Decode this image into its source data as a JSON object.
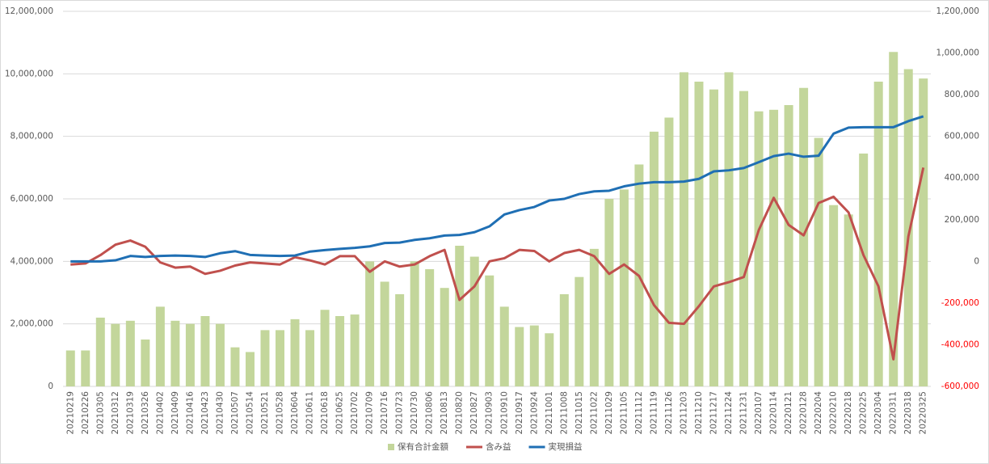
{
  "chart_data": {
    "type": "bar_line_combo",
    "categories": [
      "20210219",
      "20210226",
      "20210305",
      "20210312",
      "20210319",
      "20210326",
      "20210402",
      "20210409",
      "20210416",
      "20210423",
      "20210430",
      "20210507",
      "20210514",
      "20210521",
      "20210528",
      "20210604",
      "20210611",
      "20210618",
      "20210625",
      "20210702",
      "20210709",
      "20210716",
      "20210723",
      "20210730",
      "20210806",
      "20210813",
      "20210820",
      "20210827",
      "20210903",
      "20210910",
      "20210917",
      "20210924",
      "20211001",
      "20211008",
      "20211015",
      "20211022",
      "20211029",
      "20211105",
      "20211112",
      "20211119",
      "20211126",
      "20211203",
      "20211210",
      "20211217",
      "20211224",
      "20211231",
      "20220107",
      "20220114",
      "20220121",
      "20220128",
      "20220204",
      "20220210",
      "20220218",
      "20220225",
      "20220304",
      "20220311",
      "20220318",
      "20220325"
    ],
    "series": [
      {
        "name": "保有合計金額",
        "type": "bar",
        "color": "#c3d69b",
        "axis": "y",
        "values": [
          1150000,
          1150000,
          2200000,
          2000000,
          2100000,
          1500000,
          2550000,
          2100000,
          2000000,
          2250000,
          2000000,
          1250000,
          1100000,
          1800000,
          1800000,
          2150000,
          1800000,
          2450000,
          2250000,
          2300000,
          4000000,
          3350000,
          2950000,
          4000000,
          3750000,
          3150000,
          4500000,
          4150000,
          3550000,
          2550000,
          1900000,
          1950000,
          1700000,
          2950000,
          3500000,
          4400000,
          6000000,
          6300000,
          7100000,
          8150000,
          8600000,
          10050000,
          9750000,
          9500000,
          10050000,
          9450000,
          8800000,
          8850000,
          9000000,
          9550000,
          7950000,
          5800000,
          5500000,
          7450000,
          9750000,
          10700000,
          10150000,
          9850000
        ]
      },
      {
        "name": "含み益",
        "type": "line",
        "color": "#c0504d",
        "axis": "y2",
        "values": [
          -15000,
          -10000,
          30000,
          80000,
          100000,
          70000,
          -5000,
          -30000,
          -25000,
          -60000,
          -45000,
          -20000,
          -5000,
          -10000,
          -15000,
          20000,
          5000,
          -15000,
          25000,
          25000,
          -50000,
          0,
          -25000,
          -15000,
          25000,
          55000,
          -185000,
          -120000,
          0,
          15000,
          55000,
          50000,
          0,
          40000,
          55000,
          25000,
          -60000,
          -15000,
          -70000,
          -210000,
          -295000,
          -300000,
          -215000,
          -120000,
          -100000,
          -75000,
          150000,
          305000,
          175000,
          125000,
          280000,
          310000,
          235000,
          30000,
          -120000,
          -470000,
          120000,
          450000
        ]
      },
      {
        "name": "実現損益",
        "type": "line",
        "color": "#1f6fb4",
        "axis": "y2",
        "values": [
          0,
          0,
          0,
          5000,
          26000,
          21000,
          26000,
          28000,
          26000,
          21000,
          39000,
          49000,
          31000,
          28000,
          26000,
          28000,
          47000,
          54000,
          60000,
          65000,
          72000,
          88000,
          90000,
          103000,
          111000,
          124000,
          127000,
          140000,
          168000,
          225000,
          246000,
          261000,
          292000,
          300000,
          323000,
          336000,
          339000,
          360000,
          373000,
          380000,
          380000,
          383000,
          396000,
          432000,
          437000,
          448000,
          476000,
          505000,
          517000,
          502000,
          507000,
          613000,
          642000,
          644000,
          644000,
          644000,
          673000,
          696000
        ]
      }
    ],
    "ylim": [
      0,
      12000000
    ],
    "yticks": [
      0,
      {
        "value": 2000000,
        "label": "2,000,000"
      },
      {
        "value": 4000000,
        "label": "4,000,000"
      },
      {
        "value": 6000000,
        "label": "6,000,000"
      },
      {
        "value": 8000000,
        "label": "8,000,000"
      },
      {
        "value": 10000000,
        "label": "10,000,000"
      },
      {
        "value": 12000000,
        "label": "12,000,000"
      }
    ],
    "y2lim": [
      -600000,
      1200000
    ],
    "y2ticks": [
      {
        "value": -600000,
        "label": "-600,000"
      },
      {
        "value": -400000,
        "label": "-400,000"
      },
      {
        "value": -200000,
        "label": "-200,000"
      },
      0,
      {
        "value": 200000,
        "label": "200,000"
      },
      {
        "value": 400000,
        "label": "400,000"
      },
      {
        "value": 600000,
        "label": "600,000"
      },
      {
        "value": 800000,
        "label": "800,000"
      },
      {
        "value": 1000000,
        "label": "1,000,000"
      },
      {
        "value": 1200000,
        "label": "1,200,000"
      }
    ],
    "negative_tick_color": "#ff0000",
    "grid": true,
    "legend": "bottom"
  }
}
